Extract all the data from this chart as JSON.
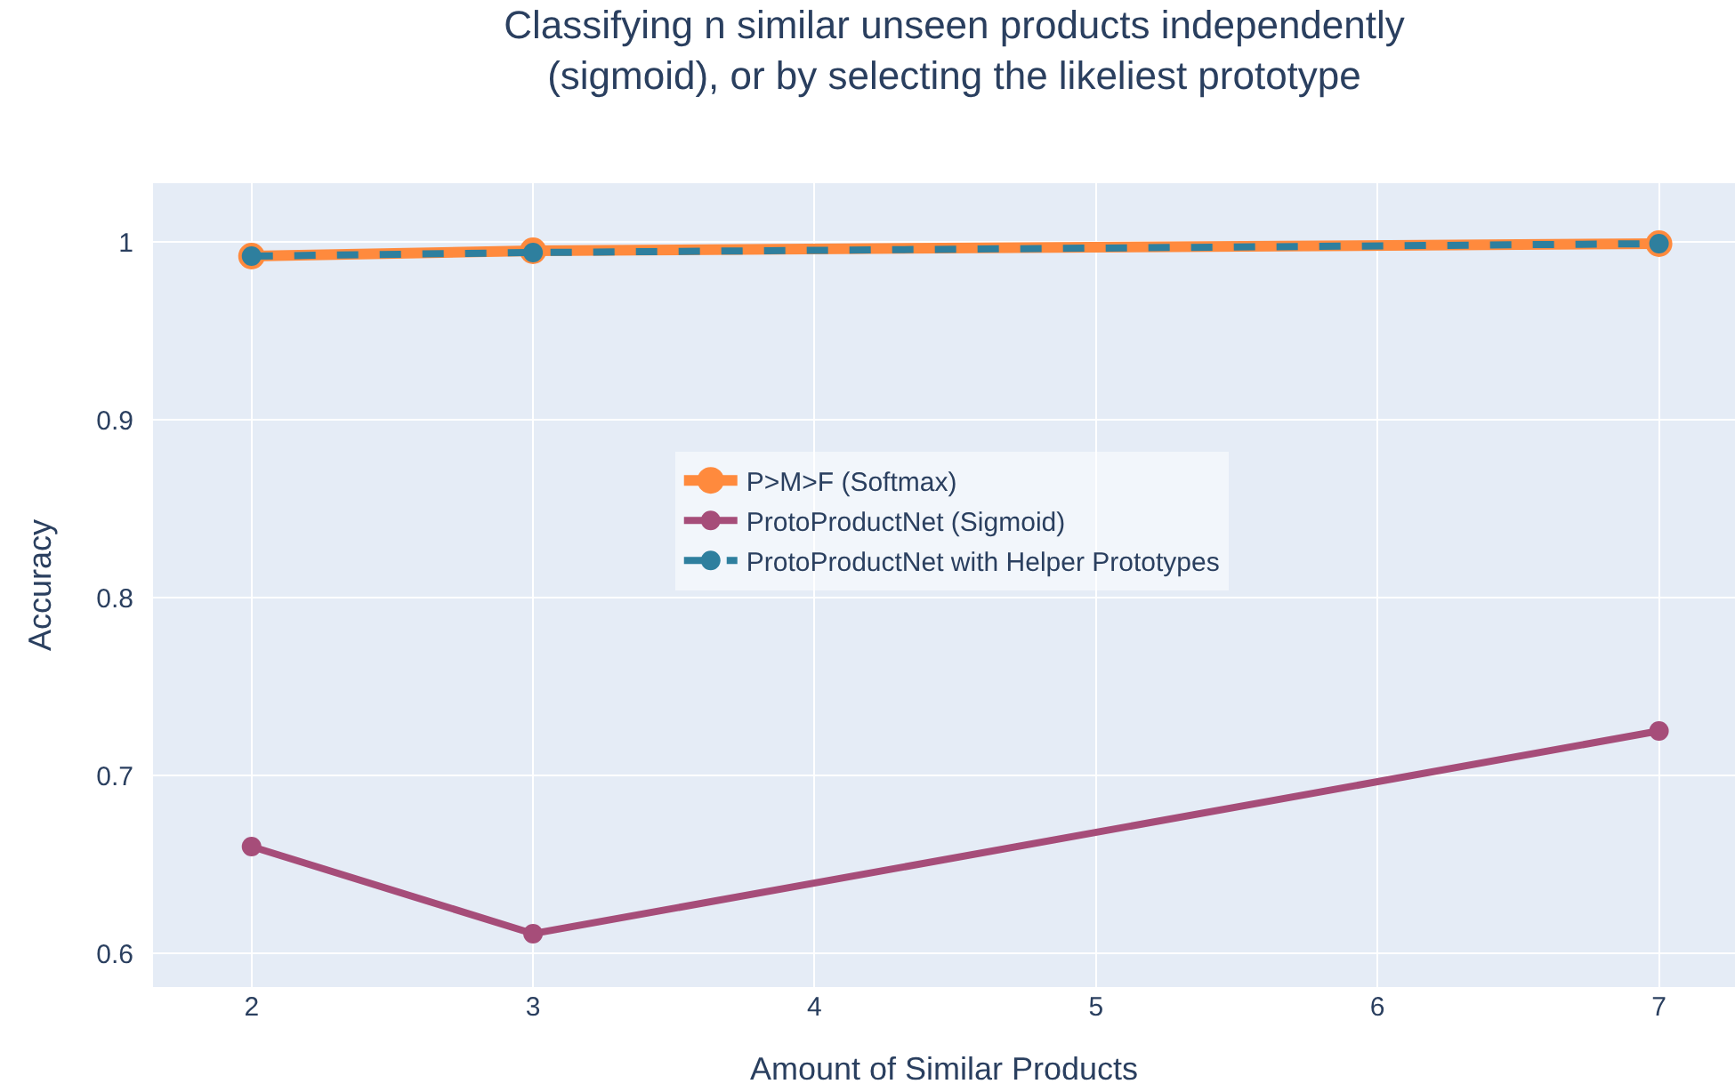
{
  "chart_data": {
    "type": "line",
    "title": "Classifying n similar unseen products independently\n(sigmoid), or by selecting the likeliest prototype",
    "xlabel": "Amount of Similar Products",
    "ylabel": "Accuracy",
    "x": [
      2,
      3,
      7
    ],
    "series": [
      {
        "name": "P>M>F (Softmax)",
        "color": "#ff8a3d",
        "values": [
          0.992,
          0.995,
          0.999
        ]
      },
      {
        "name": "ProtoProductNet (Sigmoid)",
        "color": "#a64d79",
        "values": [
          0.66,
          0.611,
          0.725
        ]
      },
      {
        "name": "ProtoProductNet with Helper Prototypes",
        "color": "#2e7f9e",
        "values": [
          0.992,
          0.994,
          0.999
        ],
        "line_style": "dashed"
      }
    ],
    "xlim": [
      1.65,
      7.27
    ],
    "xticks": [
      2,
      3,
      4,
      5,
      6,
      7
    ],
    "ylim": [
      0.581,
      1.033
    ],
    "yticks": [
      0.6,
      0.7,
      0.8,
      0.9,
      1
    ],
    "grid": true,
    "legend": "center",
    "marker": "circle"
  }
}
